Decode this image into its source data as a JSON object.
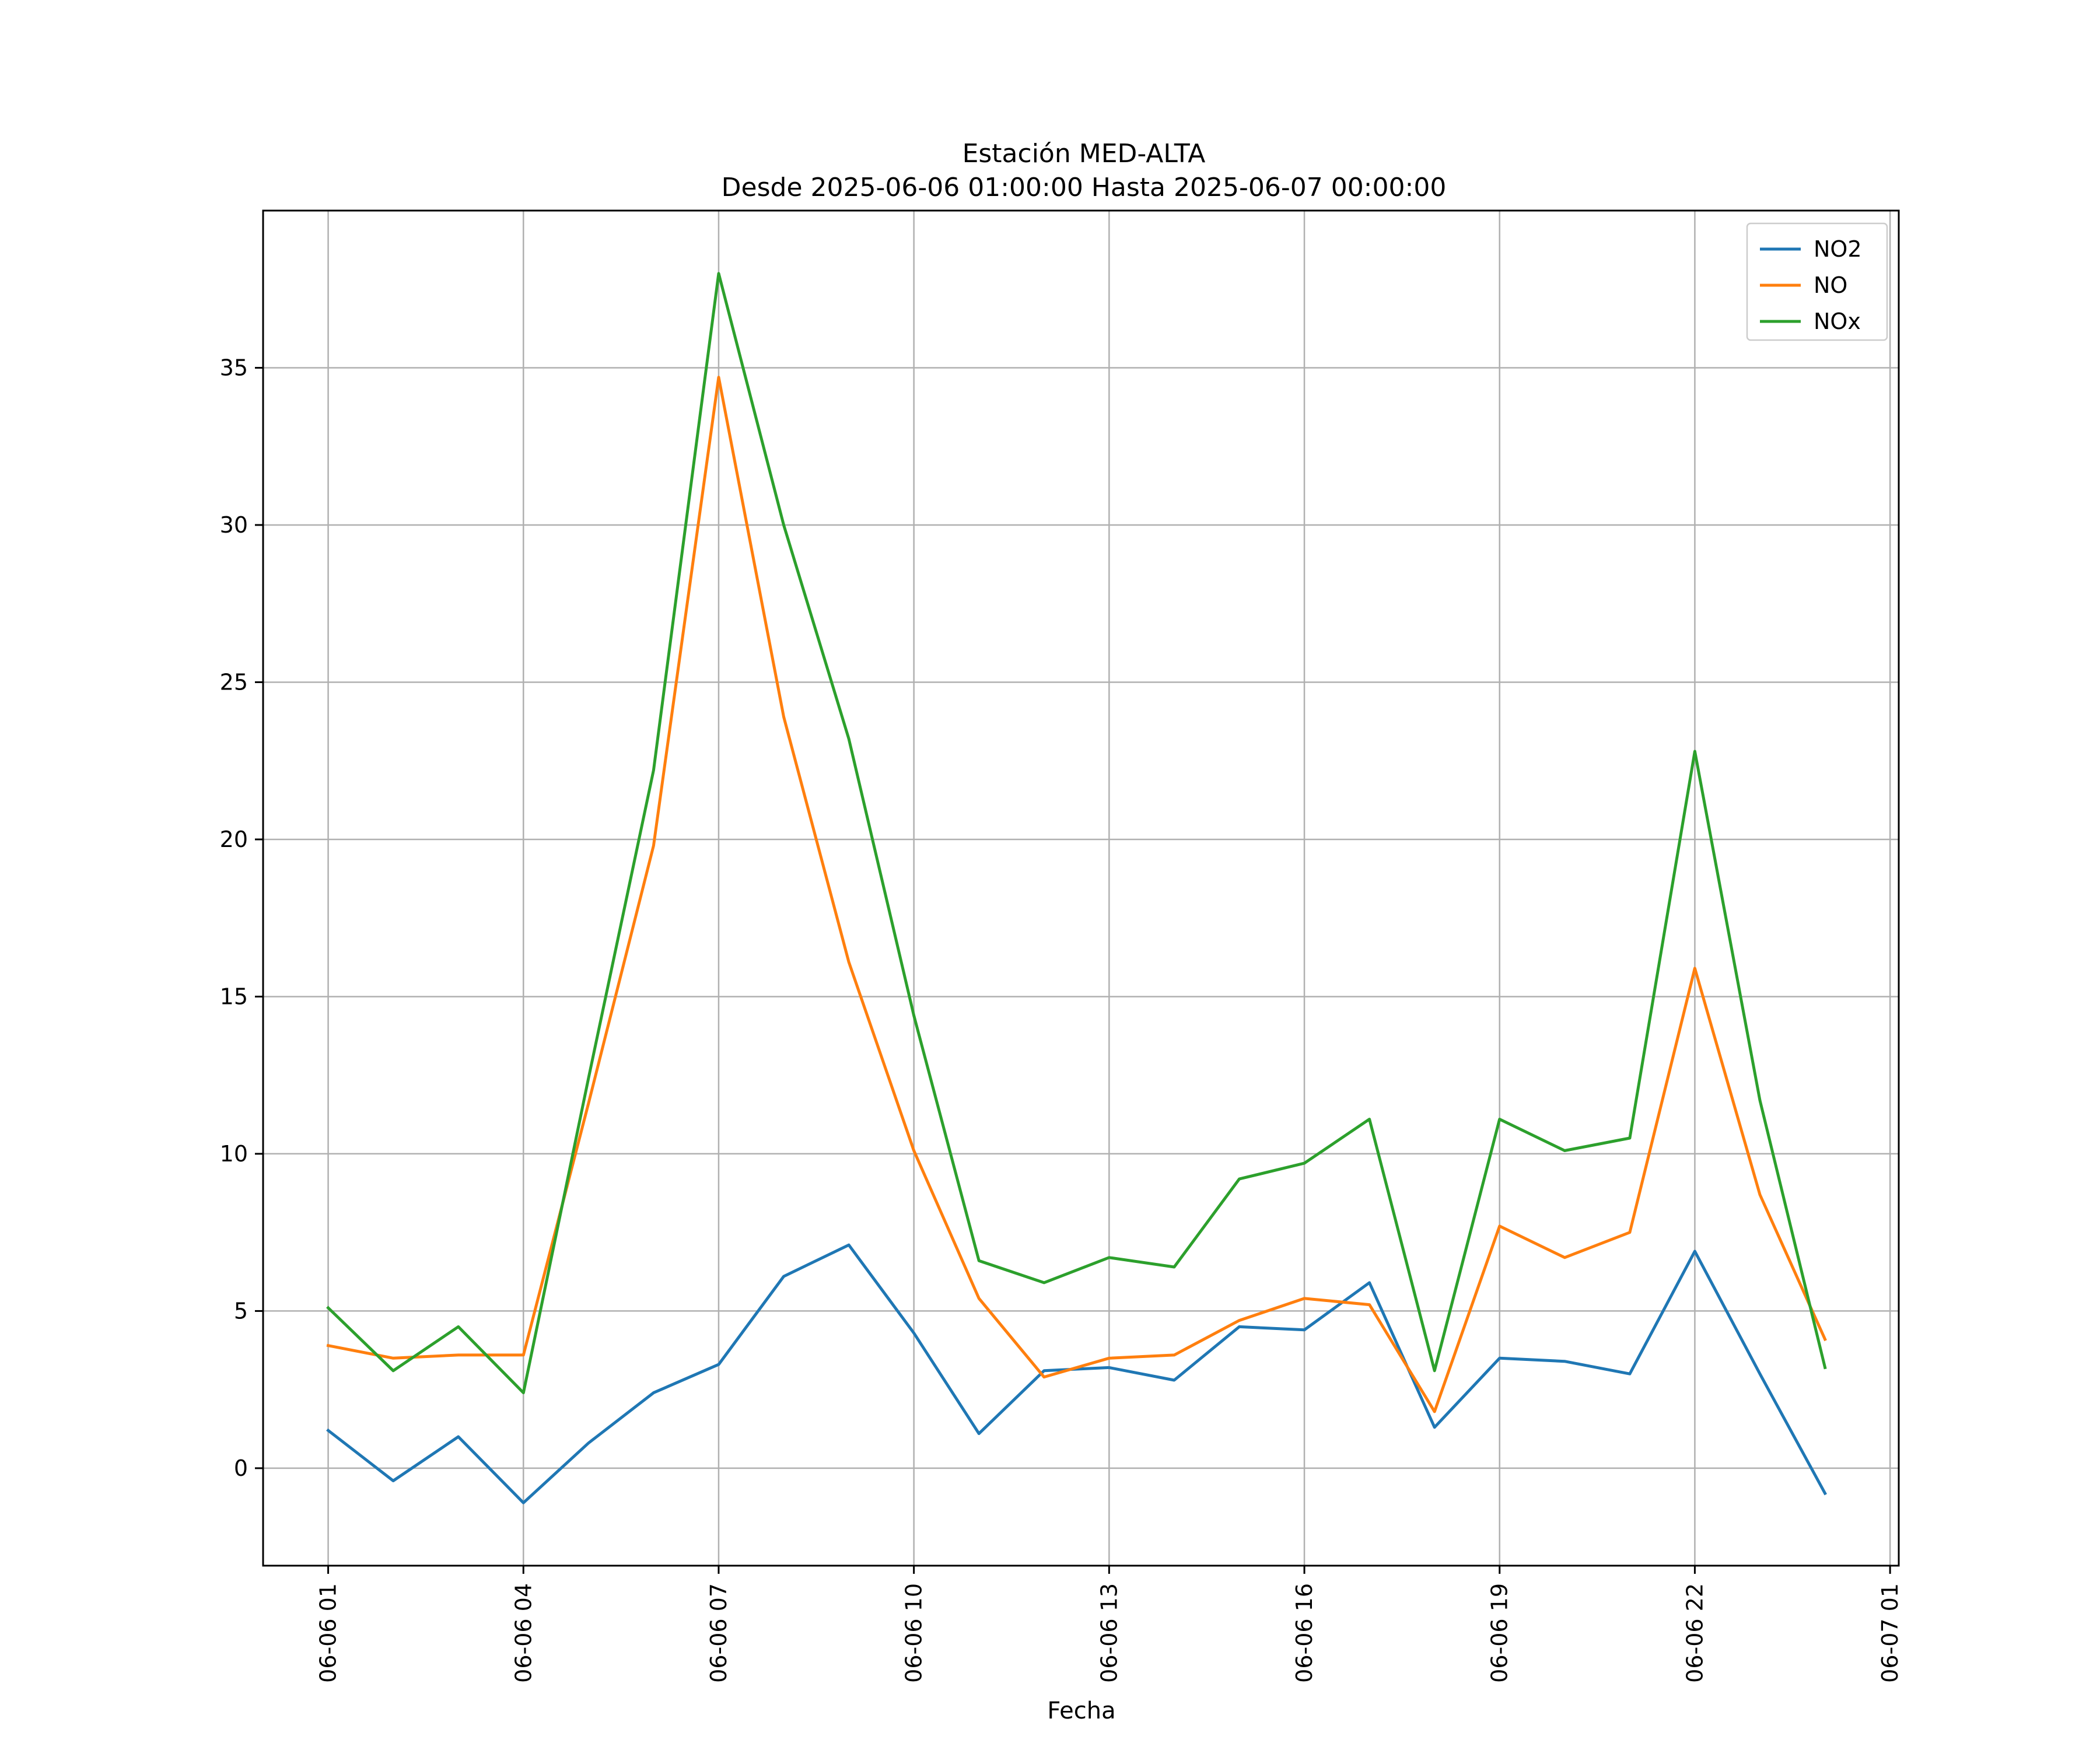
{
  "chart_data": {
    "type": "line",
    "title": "Estación MED-ALTA",
    "subtitle": "Desde 2025-06-06 01:00:00 Hasta 2025-06-07 00:00:00",
    "xlabel": "Fecha",
    "ylabel": "",
    "x": [
      "2025-06-06 01:00",
      "2025-06-06 02:00",
      "2025-06-06 03:00",
      "2025-06-06 04:00",
      "2025-06-06 05:00",
      "2025-06-06 06:00",
      "2025-06-06 07:00",
      "2025-06-06 08:00",
      "2025-06-06 09:00",
      "2025-06-06 10:00",
      "2025-06-06 11:00",
      "2025-06-06 12:00",
      "2025-06-06 13:00",
      "2025-06-06 14:00",
      "2025-06-06 15:00",
      "2025-06-06 16:00",
      "2025-06-06 17:00",
      "2025-06-06 18:00",
      "2025-06-06 19:00",
      "2025-06-06 20:00",
      "2025-06-06 21:00",
      "2025-06-06 22:00",
      "2025-06-06 23:00",
      "2025-06-07 00:00"
    ],
    "xlim": [
      "2025-06-06 00:00",
      "2025-06-07 01:08"
    ],
    "ylim": [
      -3.1,
      40.0
    ],
    "x_ticks": [
      "06-06 01",
      "06-06 04",
      "06-06 07",
      "06-06 10",
      "06-06 13",
      "06-06 16",
      "06-06 19",
      "06-06 22",
      "06-07 01"
    ],
    "x_tick_values": [
      "2025-06-06 01:00",
      "2025-06-06 04:00",
      "2025-06-06 07:00",
      "2025-06-06 10:00",
      "2025-06-06 13:00",
      "2025-06-06 16:00",
      "2025-06-06 19:00",
      "2025-06-06 22:00",
      "2025-06-07 01:00"
    ],
    "y_ticks": [
      0,
      5,
      10,
      15,
      20,
      25,
      30,
      35
    ],
    "grid": true,
    "legend_position": "top-right",
    "series": [
      {
        "name": "NO2",
        "color": "#1f77b4",
        "values": [
          1.2,
          -0.4,
          1.0,
          -1.1,
          0.8,
          2.4,
          3.3,
          6.1,
          7.1,
          4.3,
          1.1,
          3.1,
          3.2,
          2.8,
          4.5,
          4.4,
          5.9,
          1.3,
          3.5,
          3.4,
          3.0,
          6.9,
          3.0,
          -0.8
        ]
      },
      {
        "name": "NO",
        "color": "#ff7f0e",
        "values": [
          3.9,
          3.5,
          3.6,
          3.6,
          11.6,
          19.8,
          34.7,
          23.9,
          16.1,
          10.1,
          5.4,
          2.9,
          3.5,
          3.6,
          4.7,
          5.4,
          5.2,
          1.8,
          7.7,
          6.7,
          7.5,
          15.9,
          8.7,
          4.1
        ]
      },
      {
        "name": "NOx",
        "color": "#2ca02c",
        "values": [
          5.1,
          3.1,
          4.5,
          2.4,
          12.4,
          22.2,
          38.0,
          30.0,
          23.2,
          14.4,
          6.6,
          5.9,
          6.7,
          6.4,
          9.2,
          9.7,
          11.1,
          3.1,
          11.1,
          10.1,
          10.5,
          22.8,
          11.7,
          3.2
        ]
      }
    ]
  }
}
